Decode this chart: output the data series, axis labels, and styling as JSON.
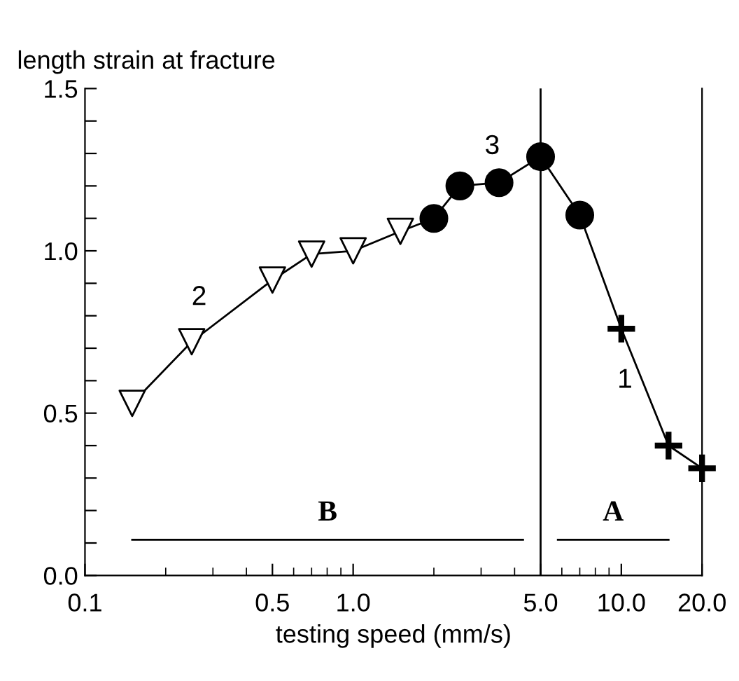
{
  "chart_data": {
    "type": "line",
    "xlabel": "testing speed (mm/s)",
    "ylabel": "length strain at fracture",
    "log": "x",
    "xlim": [
      0.1,
      20
    ],
    "ylim": [
      0,
      1.5
    ],
    "xticks": [
      0.1,
      0.5,
      {
        "value": 1,
        "label": "1.0"
      },
      {
        "value": 5,
        "label": "5.0"
      },
      {
        "value": 10,
        "label": "10.0"
      },
      {
        "value": 20,
        "label": "20.0"
      }
    ],
    "yticks": [
      {
        "value": 0,
        "label": "0.0"
      },
      {
        "value": 0.1,
        "label": null
      },
      {
        "value": 0.2,
        "label": null
      },
      {
        "value": 0.3,
        "label": null
      },
      {
        "value": 0.4,
        "label": null
      },
      0.5,
      {
        "value": 0.6,
        "label": null
      },
      {
        "value": 0.7,
        "label": null
      },
      {
        "value": 0.8,
        "label": null
      },
      {
        "value": 0.9,
        "label": null
      },
      {
        "value": 1,
        "label": "1.0"
      },
      {
        "value": 1.1,
        "label": null
      },
      {
        "value": 1.2,
        "label": null
      },
      {
        "value": 1.3,
        "label": null
      },
      {
        "value": 1.4,
        "label": null
      },
      1.5
    ],
    "grid": false,
    "series": [
      {
        "color": "#000000",
        "marker": "none",
        "x": [
          0.15,
          0.25,
          0.5,
          0.7,
          1.0,
          1.5,
          2.0,
          2.5,
          3.5,
          5.0,
          7.0,
          10,
          15,
          20
        ],
        "values": [
          0.53,
          0.72,
          0.91,
          0.99,
          1.0,
          1.06,
          1.1,
          1.2,
          1.21,
          1.29,
          1.11,
          0.76,
          0.4,
          0.33
        ]
      },
      {
        "type": "scatter",
        "color": "#000000",
        "marker": "triangle",
        "x": [
          0.15,
          0.25,
          0.5,
          0.7,
          1.0,
          1.5
        ],
        "values": [
          0.53,
          0.72,
          0.91,
          0.99,
          1.0,
          1.06
        ]
      },
      {
        "type": "scatter",
        "color": "#000000",
        "marker": "circle",
        "x": [
          2.0,
          2.5,
          3.5,
          5.0,
          7.0
        ],
        "values": [
          1.1,
          1.2,
          1.21,
          1.29,
          1.11
        ]
      },
      {
        "type": "scatter",
        "color": "#000000",
        "marker": "cross",
        "x": [
          10,
          15,
          20
        ],
        "values": [
          0.76,
          0.4,
          0.33
        ]
      },
      {
        "name": "B",
        "color": "#000000",
        "marker": "none",
        "x": [
          0.15,
          4.3
        ],
        "values": [
          0.11,
          0.11
        ]
      },
      {
        "name": "A",
        "color": "#000000",
        "marker": "none",
        "x": [
          5.8,
          15
        ],
        "values": [
          0.11,
          0.11
        ]
      }
    ],
    "annotations": [
      "2",
      "3",
      "1"
    ],
    "ref_lines": [
      {
        "axis": "x",
        "value": 5,
        "color": "#000000"
      }
    ]
  }
}
